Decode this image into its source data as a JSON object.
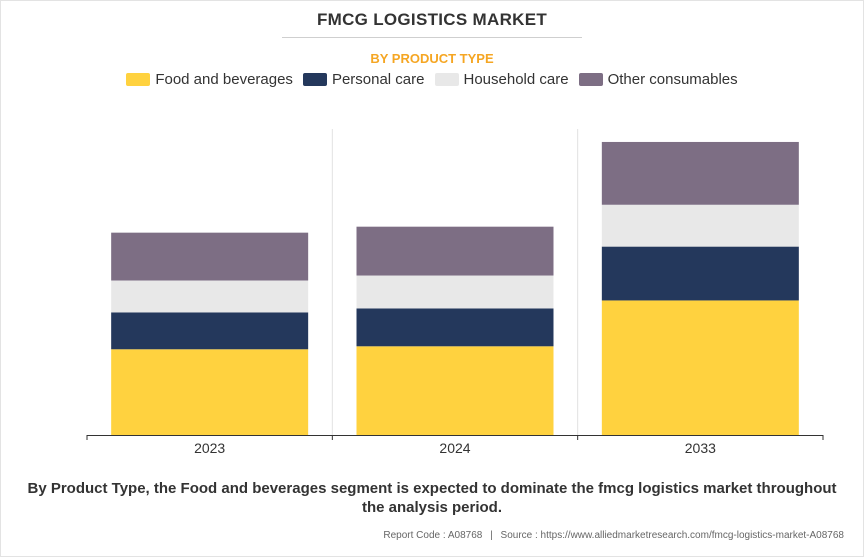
{
  "header": {
    "title": "FMCG LOGISTICS MARKET",
    "subtitle": "BY PRODUCT TYPE",
    "subtitle_color": "#f5a623"
  },
  "chart_data": {
    "type": "bar",
    "stacked": true,
    "categories": [
      "2023",
      "2024",
      "2033"
    ],
    "series": [
      {
        "name": "Food and beverages",
        "color": "#ffd23f",
        "values": [
          86,
          89,
          135
        ]
      },
      {
        "name": "Personal care",
        "color": "#24385c",
        "values": [
          37,
          38,
          54
        ]
      },
      {
        "name": "Household care",
        "color": "#e8e8e8",
        "values": [
          32,
          33,
          42
        ]
      },
      {
        "name": "Other consumables",
        "color": "#7d6e84",
        "values": [
          48,
          49,
          63
        ]
      }
    ],
    "ylim": [
      0,
      307
    ],
    "y_axis_visible": false,
    "grid": "vertical separators",
    "legend_position": "top"
  },
  "footer": {
    "statement": "By Product Type, the Food and beverages segment is expected to dominate the fmcg logistics market throughout the analysis period.",
    "report_code": "Report Code : A08768",
    "source": "Source : https://www.alliedmarketresearch.com/fmcg-logistics-market-A08768",
    "separator": "|"
  }
}
